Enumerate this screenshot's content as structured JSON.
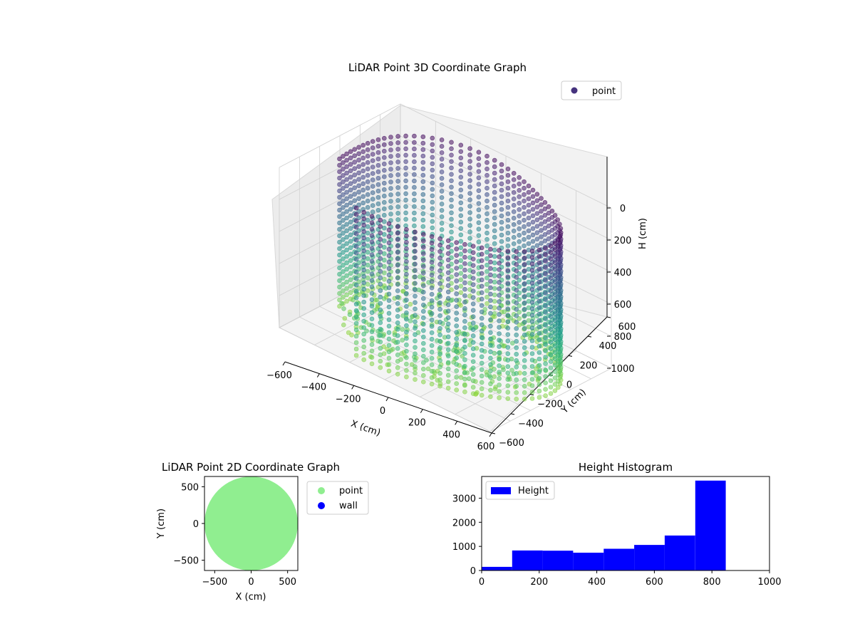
{
  "chart_data": [
    {
      "type": "scatter",
      "projection": "3d",
      "title": "LiDAR Point 3D Coordinate Graph",
      "xlabel": "X (cm)",
      "ylabel": "Y (cm)",
      "zlabel": "H (cm)",
      "xlim": [
        -600,
        600
      ],
      "ylim": [
        -600,
        600
      ],
      "zlim": [
        0,
        1000
      ],
      "z_inverted": true,
      "x_ticks": [
        "−600",
        "−400",
        "−200",
        "0",
        "200",
        "400",
        "600"
      ],
      "y_ticks": [
        "−600",
        "−400",
        "−200",
        "0",
        "200",
        "400",
        "600"
      ],
      "z_ticks": [
        "0",
        "200",
        "400",
        "600",
        "800",
        "1000"
      ],
      "legend": {
        "position": "top-right",
        "entries": [
          "point"
        ]
      },
      "series": [
        {
          "name": "point",
          "colormap": "viridis",
          "legend_color": "#46337e",
          "shape": "cylindrical-wall",
          "radius": 600,
          "height_range": [
            0,
            1000
          ],
          "gap_angle_deg": [
            200,
            250
          ],
          "floor_cluster": true
        }
      ],
      "grid": true
    },
    {
      "type": "scatter",
      "title": "LiDAR Point 2D Coordinate Graph",
      "xlabel": "X (cm)",
      "ylabel": "Y (cm)",
      "xlim": [
        -640,
        640
      ],
      "ylim": [
        -640,
        640
      ],
      "x_ticks": [
        "−500",
        "0",
        "500"
      ],
      "y_ticks": [
        "−500",
        "0",
        "500"
      ],
      "legend": {
        "position": "outside-right",
        "entries": [
          "point",
          "wall"
        ]
      },
      "series": [
        {
          "name": "point",
          "color": "#90ee90",
          "shape": "filled-disc",
          "radius": 640
        },
        {
          "name": "wall",
          "color": "#0000ff"
        }
      ]
    },
    {
      "type": "bar",
      "title": "Height Histogram",
      "xlim": [
        0,
        1000
      ],
      "ylim": [
        0,
        3900
      ],
      "x_ticks": [
        "0",
        "200",
        "400",
        "600",
        "800",
        "1000"
      ],
      "y_ticks": [
        "0",
        "1000",
        "2000",
        "3000"
      ],
      "legend": {
        "position": "top-left",
        "entries": [
          "Height"
        ]
      },
      "color": "#0000ff",
      "series": [
        {
          "name": "Height",
          "bins": [
            {
              "start": 0,
              "end": 106,
              "count": 150
            },
            {
              "start": 106,
              "end": 212,
              "count": 830
            },
            {
              "start": 212,
              "end": 318,
              "count": 820
            },
            {
              "start": 318,
              "end": 424,
              "count": 740
            },
            {
              "start": 424,
              "end": 530,
              "count": 900
            },
            {
              "start": 530,
              "end": 636,
              "count": 1060
            },
            {
              "start": 636,
              "end": 742,
              "count": 1450
            },
            {
              "start": 742,
              "end": 848,
              "count": 3730
            }
          ]
        }
      ]
    }
  ]
}
